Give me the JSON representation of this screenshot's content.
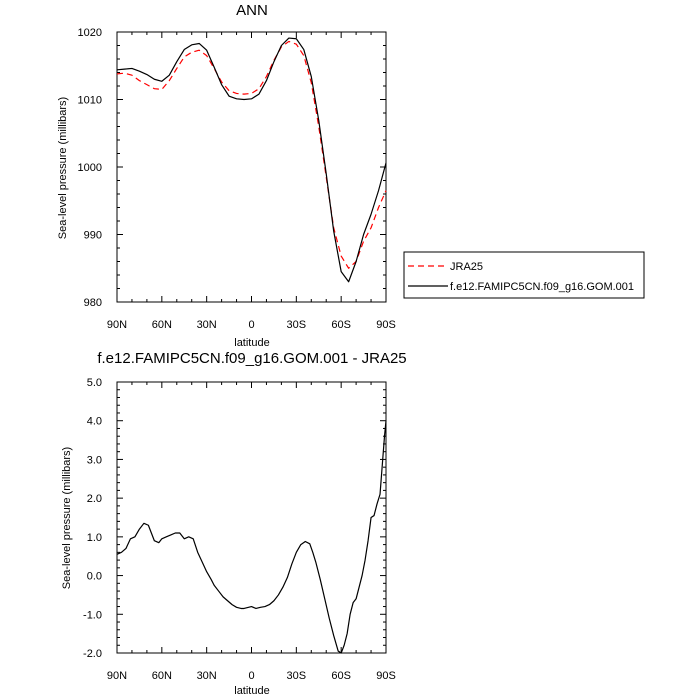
{
  "chart_data": [
    {
      "type": "line",
      "title": "ANN",
      "xlabel": "latitude",
      "ylabel": "Sea-level pressure (millibars)",
      "xlim": [
        90,
        -90
      ],
      "ylim": [
        980,
        1020
      ],
      "xticks": [
        {
          "value": 90,
          "label": "90N"
        },
        {
          "value": 60,
          "label": "60N"
        },
        {
          "value": 30,
          "label": "30N"
        },
        {
          "value": 0,
          "label": "0"
        },
        {
          "value": -30,
          "label": "30S"
        },
        {
          "value": -60,
          "label": "60S"
        },
        {
          "value": -90,
          "label": "90S"
        }
      ],
      "yticks": [
        {
          "value": 980,
          "label": "980"
        },
        {
          "value": 990,
          "label": "990"
        },
        {
          "value": 1000,
          "label": "1000"
        },
        {
          "value": 1010,
          "label": "1010"
        },
        {
          "value": 1020,
          "label": "1020"
        }
      ],
      "legend_position": "outside-right",
      "series": [
        {
          "name": "JRA25",
          "color": "#ff0000",
          "dash": "dashed",
          "x": [
            90,
            85,
            80,
            75,
            70,
            65,
            60,
            55,
            50,
            45,
            40,
            35,
            30,
            25,
            20,
            15,
            10,
            5,
            0,
            -5,
            -10,
            -15,
            -20,
            -25,
            -30,
            -35,
            -40,
            -45,
            -50,
            -55,
            -60,
            -65,
            -70,
            -75,
            -80,
            -85,
            -90
          ],
          "y": [
            1013.8,
            1013.9,
            1013.6,
            1012.8,
            1012.2,
            1011.6,
            1011.5,
            1012.8,
            1014.6,
            1016.3,
            1017.0,
            1017.3,
            1016.5,
            1014.6,
            1012.6,
            1011.3,
            1010.9,
            1010.8,
            1010.9,
            1011.6,
            1013.4,
            1015.8,
            1017.8,
            1018.6,
            1018.2,
            1016.5,
            1012.5,
            1006.0,
            998.5,
            991.0,
            986.8,
            985.0,
            986.0,
            989.0,
            991.0,
            994.0,
            996.5
          ]
        },
        {
          "name": "f.e12.FAMIPC5CN.f09_g16.GOM.001",
          "color": "#000000",
          "dash": "solid",
          "x": [
            90,
            85,
            80,
            75,
            70,
            65,
            60,
            55,
            50,
            45,
            40,
            35,
            30,
            25,
            20,
            15,
            10,
            5,
            0,
            -5,
            -10,
            -15,
            -20,
            -25,
            -30,
            -35,
            -40,
            -45,
            -50,
            -55,
            -60,
            -65,
            -70,
            -75,
            -80,
            -85,
            -90
          ],
          "y": [
            1014.4,
            1014.5,
            1014.6,
            1014.2,
            1013.7,
            1013.0,
            1012.7,
            1013.6,
            1015.6,
            1017.4,
            1018.1,
            1018.3,
            1017.3,
            1014.8,
            1012.2,
            1010.5,
            1010.1,
            1010.0,
            1010.1,
            1010.8,
            1012.8,
            1015.6,
            1018.0,
            1019.1,
            1019.0,
            1017.4,
            1013.4,
            1006.9,
            999.0,
            990.5,
            984.5,
            983.0,
            986.0,
            990.0,
            993.0,
            996.5,
            1000.6
          ]
        }
      ]
    },
    {
      "type": "line",
      "title": "f.e12.FAMIPC5CN.f09_g16.GOM.001 - JRA25",
      "xlabel": "latitude",
      "ylabel": "Sea-level pressure (millibars)",
      "xlim": [
        90,
        -90
      ],
      "ylim": [
        -2.0,
        5.0
      ],
      "xticks": [
        {
          "value": 90,
          "label": "90N"
        },
        {
          "value": 60,
          "label": "60N"
        },
        {
          "value": 30,
          "label": "30N"
        },
        {
          "value": 0,
          "label": "0"
        },
        {
          "value": -30,
          "label": "30S"
        },
        {
          "value": -60,
          "label": "60S"
        },
        {
          "value": -90,
          "label": "90S"
        }
      ],
      "yticks": [
        {
          "value": -2.0,
          "label": "-2.0"
        },
        {
          "value": -1.0,
          "label": "-1.0"
        },
        {
          "value": 0.0,
          "label": "0.0"
        },
        {
          "value": 1.0,
          "label": "1.0"
        },
        {
          "value": 2.0,
          "label": "2.0"
        },
        {
          "value": 3.0,
          "label": "3.0"
        },
        {
          "value": 4.0,
          "label": "4.0"
        },
        {
          "value": 5.0,
          "label": "5.0"
        }
      ],
      "series": [
        {
          "color": "#000000",
          "dash": "solid",
          "x": [
            90,
            87,
            84,
            81,
            78,
            75,
            72,
            69,
            67,
            65,
            62,
            60,
            57,
            54,
            51,
            48,
            45,
            42,
            39,
            36,
            33,
            30,
            27,
            25,
            22,
            19,
            16,
            13,
            10,
            7,
            5,
            2,
            0,
            -3,
            -6,
            -9,
            -12,
            -15,
            -18,
            -21,
            -24,
            -27,
            -30,
            -33,
            -36,
            -39,
            -41,
            -43,
            -46,
            -49,
            -52,
            -55,
            -58,
            -60,
            -62,
            -64,
            -66,
            -68,
            -70,
            -72,
            -74,
            -76,
            -78,
            -80,
            -82,
            -84,
            -86,
            -87,
            -88,
            -89,
            -90
          ],
          "y": [
            0.55,
            0.6,
            0.7,
            0.95,
            1.0,
            1.2,
            1.35,
            1.3,
            1.1,
            0.9,
            0.85,
            0.95,
            1.0,
            1.05,
            1.1,
            1.1,
            0.95,
            1.0,
            0.95,
            0.6,
            0.35,
            0.1,
            -0.1,
            -0.25,
            -0.4,
            -0.55,
            -0.65,
            -0.75,
            -0.82,
            -0.85,
            -0.85,
            -0.82,
            -0.8,
            -0.85,
            -0.82,
            -0.8,
            -0.75,
            -0.65,
            -0.5,
            -0.3,
            -0.05,
            0.3,
            0.6,
            0.8,
            0.88,
            0.82,
            0.6,
            0.35,
            -0.1,
            -0.6,
            -1.1,
            -1.55,
            -1.95,
            -2.0,
            -1.8,
            -1.5,
            -1.0,
            -0.7,
            -0.6,
            -0.3,
            0.0,
            0.4,
            0.9,
            1.5,
            1.55,
            1.85,
            2.1,
            2.6,
            3.1,
            3.6,
            4.0
          ]
        }
      ]
    }
  ]
}
